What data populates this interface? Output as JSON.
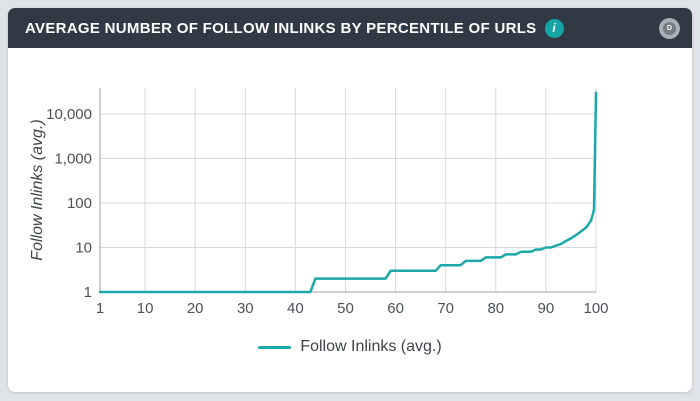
{
  "page": {
    "background": "#e0e4e8"
  },
  "header": {
    "title": "AVERAGE NUMBER OF FOLLOW INLINKS BY PERCENTILE OF URLS",
    "background": "#2f3a45",
    "title_color": "#ffffff",
    "info_icon": {
      "glyph": "i",
      "background": "#16a5a7",
      "color": "#ffffff"
    },
    "handle_button": {
      "glyph": "D",
      "outer_color": "#a9b0b6",
      "inner_color": "#757d84"
    }
  },
  "chart_data": {
    "type": "line",
    "title": "",
    "xlabel": "",
    "ylabel": "Follow Inlinks (avg.)",
    "x_scale": "linear",
    "y_scale": "log",
    "xlim": [
      1,
      100
    ],
    "ylim": [
      1,
      30000
    ],
    "xticks": [
      1,
      10,
      20,
      30,
      40,
      50,
      60,
      70,
      80,
      90,
      100
    ],
    "yticks": [
      {
        "value": 1,
        "label": "1"
      },
      {
        "value": 10,
        "label": "10"
      },
      {
        "value": 100,
        "label": "100"
      },
      {
        "value": 1000,
        "label": "1,000"
      },
      {
        "value": 10000,
        "label": "10,000"
      }
    ],
    "grid": true,
    "legend_position": "bottom",
    "axis_color": "#9aa0a5",
    "grid_color": "#d7d9db",
    "tick_label_color": "#4d5257",
    "series": [
      {
        "name": "Follow Inlinks (avg.)",
        "color": "#1ca7a9",
        "points": [
          [
            1,
            1
          ],
          [
            43,
            1
          ],
          [
            44,
            2
          ],
          [
            58,
            2
          ],
          [
            59,
            3
          ],
          [
            68,
            3
          ],
          [
            69,
            4
          ],
          [
            73,
            4
          ],
          [
            74,
            5
          ],
          [
            77,
            5
          ],
          [
            78,
            6
          ],
          [
            81,
            6
          ],
          [
            82,
            7
          ],
          [
            84,
            7
          ],
          [
            85,
            8
          ],
          [
            87,
            8
          ],
          [
            88,
            9
          ],
          [
            89,
            9
          ],
          [
            90,
            10
          ],
          [
            91,
            10
          ],
          [
            92,
            11
          ],
          [
            93,
            12
          ],
          [
            94,
            14
          ],
          [
            95,
            16
          ],
          [
            96,
            19
          ],
          [
            97,
            23
          ],
          [
            98,
            28
          ],
          [
            99,
            40
          ],
          [
            99.6,
            70
          ],
          [
            100,
            30000
          ]
        ]
      }
    ]
  }
}
